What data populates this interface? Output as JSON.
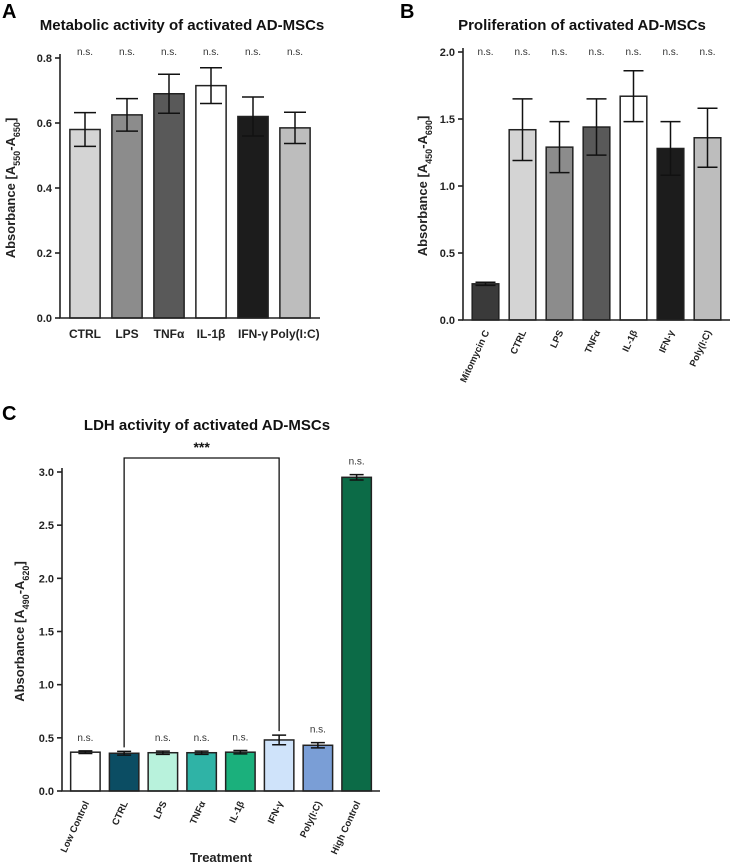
{
  "panel_labels": [
    "A",
    "B",
    "C"
  ],
  "chart_data": [
    {
      "type": "bar",
      "title": "Metabolic activity of activated AD-MSCs",
      "ylabel_main": "Absorbance [A",
      "ylabel_sub1": "550",
      "ylabel_mid": "-A",
      "ylabel_sub2": "650",
      "ylabel_end": "]",
      "xlabel": "",
      "ylim": [
        0,
        0.8
      ],
      "yticks": [
        "0.0",
        "0.2",
        "0.4",
        "0.6",
        "0.8"
      ],
      "ytick_values": [
        0,
        0.2,
        0.4,
        0.6,
        0.8
      ],
      "categories": [
        "CTRL",
        "LPS",
        "TNFα",
        "IL-1β",
        "IFN-γ",
        "Poly(I:C)"
      ],
      "values": [
        0.58,
        0.625,
        0.69,
        0.715,
        0.62,
        0.585
      ],
      "errors": [
        0.052,
        0.05,
        0.06,
        0.055,
        0.06,
        0.048
      ],
      "colors": [
        "#d4d4d4",
        "#8c8c8c",
        "#595959",
        "#ffffff",
        "#1c1c1c",
        "#bdbdbd"
      ],
      "annotations": [
        "n.s.",
        "n.s.",
        "n.s.",
        "n.s.",
        "n.s.",
        "n.s."
      ]
    },
    {
      "type": "bar",
      "title": "Proliferation of activated AD-MSCs",
      "ylabel_main": "Absorbance [A",
      "ylabel_sub1": "450",
      "ylabel_mid": "-A",
      "ylabel_sub2": "690",
      "ylabel_end": "]",
      "xlabel": "",
      "ylim": [
        0,
        2.0
      ],
      "yticks": [
        "0.0",
        "0.5",
        "1.0",
        "1.5",
        "2.0"
      ],
      "ytick_values": [
        0,
        0.5,
        1.0,
        1.5,
        2.0
      ],
      "categories": [
        "Mitomycin C",
        "CTRL",
        "LPS",
        "TNFα",
        "IL-1β",
        "IFN-γ",
        "Poly(I:C)"
      ],
      "values": [
        0.27,
        1.42,
        1.29,
        1.44,
        1.67,
        1.28,
        1.36
      ],
      "errors": [
        0.012,
        0.23,
        0.19,
        0.21,
        0.19,
        0.2,
        0.22
      ],
      "colors": [
        "#3a3a3a",
        "#d4d4d4",
        "#8c8c8c",
        "#595959",
        "#ffffff",
        "#1c1c1c",
        "#bdbdbd"
      ],
      "annotations": [
        "n.s.",
        "n.s.",
        "n.s.",
        "n.s.",
        "n.s.",
        "n.s.",
        "n.s."
      ]
    },
    {
      "type": "bar",
      "title": "LDH activity of activated AD-MSCs",
      "ylabel_main": "Absorbance [A",
      "ylabel_sub1": "490",
      "ylabel_mid": "-A",
      "ylabel_sub2": "620",
      "ylabel_end": "]",
      "xlabel": "Treatment",
      "ylim": [
        0,
        3.0
      ],
      "yticks": [
        "0.0",
        "0.5",
        "1.0",
        "1.5",
        "2.0",
        "2.5",
        "3.0"
      ],
      "ytick_values": [
        0,
        0.5,
        1.0,
        1.5,
        2.0,
        2.5,
        3.0
      ],
      "categories": [
        "Low Control",
        "CTRL",
        "LPS",
        "TNFα",
        "IL-1β",
        "IFN-γ",
        "Poly(I:C)",
        "High Control"
      ],
      "values": [
        0.365,
        0.355,
        0.36,
        0.36,
        0.365,
        0.48,
        0.43,
        2.95
      ],
      "errors": [
        0.012,
        0.018,
        0.015,
        0.015,
        0.016,
        0.045,
        0.025,
        0.025
      ],
      "colors": [
        "#ffffff",
        "#0b4d63",
        "#b8f2dc",
        "#2fb3a6",
        "#1bb07c",
        "#cfe3fa",
        "#7a9ed6",
        "#0c6b47"
      ],
      "annotations": [
        "n.s.",
        "",
        "n.s.",
        "n.s.",
        "n.s.",
        "",
        "n.s.",
        "n.s."
      ],
      "significance": {
        "from": "CTRL",
        "to": "IFN-γ",
        "label": "***"
      }
    }
  ]
}
